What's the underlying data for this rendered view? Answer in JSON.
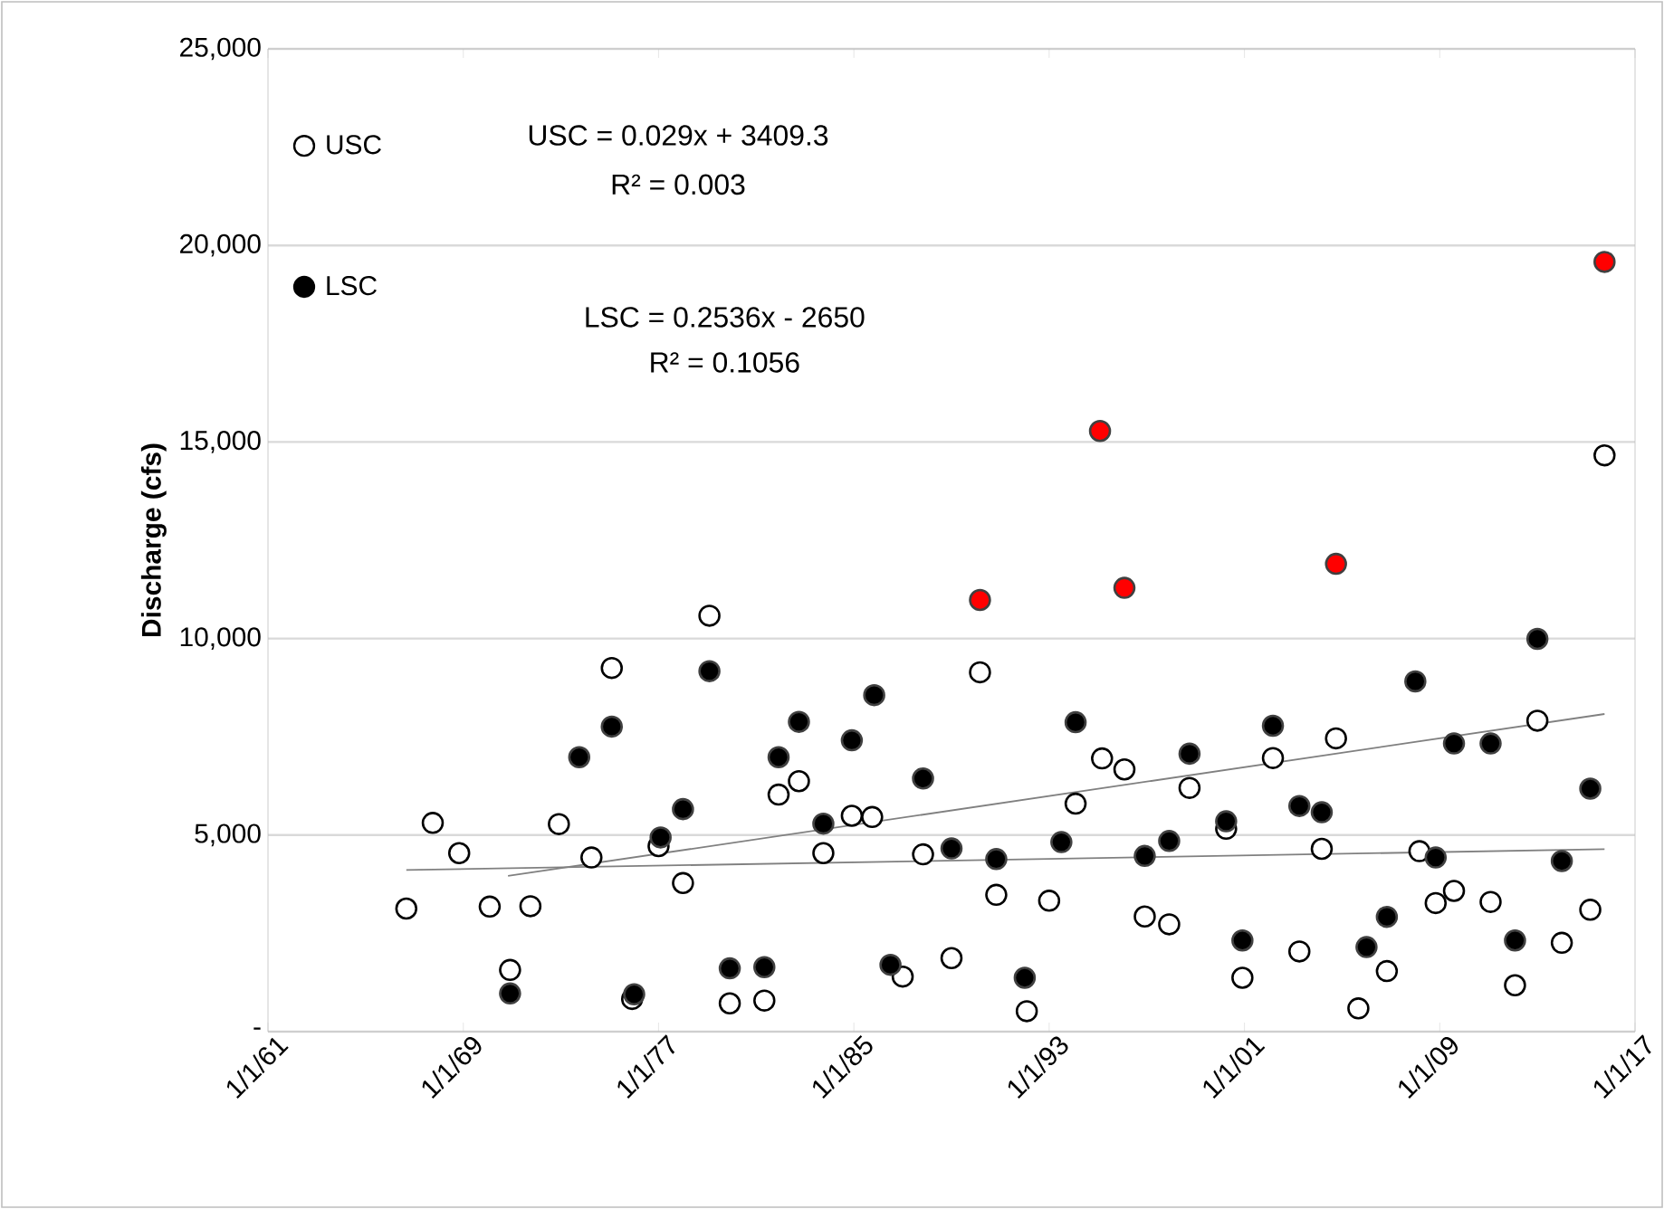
{
  "chart_data": {
    "type": "scatter",
    "ylabel": "Discharge (cfs)",
    "xlim": [
      "1961-01-01",
      "2017-01-01"
    ],
    "xticks": [
      {
        "value": "1961-01-01",
        "label": "1/1/61"
      },
      {
        "value": "1969-01-01",
        "label": "1/1/69"
      },
      {
        "value": "1977-01-01",
        "label": "1/1/77"
      },
      {
        "value": "1985-01-01",
        "label": "1/1/85"
      },
      {
        "value": "1993-01-01",
        "label": "1/1/93"
      },
      {
        "value": "2001-01-01",
        "label": "1/1/01"
      },
      {
        "value": "2009-01-01",
        "label": "1/1/09"
      },
      {
        "value": "2017-01-01",
        "label": "1/1/17"
      }
    ],
    "ylim": [
      0,
      25000
    ],
    "yticks": [
      {
        "value": 0,
        "label": "-"
      },
      {
        "value": 5000,
        "label": "5,000"
      },
      {
        "value": 10000,
        "label": "10,000"
      },
      {
        "value": 15000,
        "label": "15,000"
      },
      {
        "value": 20000,
        "label": "20,000"
      },
      {
        "value": 25000,
        "label": "25,000"
      }
    ],
    "grid": "y",
    "legend": "top left",
    "annotations": [
      "USC = 0.029x + 3409.3",
      "R² = 0.003",
      "LSC = 0.2536x - 2650",
      "R² = 0.1056"
    ],
    "series": [
      {
        "name": "USC",
        "color": "#000000",
        "x": [
          "1966-09",
          "1967-10",
          "1968-11",
          "1970-02",
          "1970-12",
          "1971-10",
          "1972-12",
          "1974-04",
          "1975-02",
          "1975-12",
          "1977-01",
          "1978-01",
          "1979-02",
          "1979-12",
          "1981-05",
          "1981-12",
          "1982-10",
          "1983-10",
          "1984-12",
          "1985-10",
          "1987-01",
          "1987-11",
          "1989-01",
          "1990-03",
          "1990-11",
          "1992-02",
          "1993-01",
          "1994-02",
          "1995-03",
          "1996-02",
          "1996-12",
          "1997-12",
          "1998-10",
          "2000-04",
          "2000-12",
          "2002-03",
          "2003-04",
          "2004-03",
          "2004-10",
          "2005-09",
          "2006-11",
          "2008-03",
          "2008-11",
          "2009-08",
          "2011-02",
          "2012-02",
          "2013-01",
          "2014-01",
          "2015-03",
          "2015-10"
        ],
        "values": [
          3130,
          5310,
          4540,
          3180,
          1570,
          3190,
          5280,
          4430,
          9250,
          830,
          4720,
          3780,
          10580,
          720,
          790,
          6030,
          6370,
          4540,
          5490,
          5460,
          1400,
          4510,
          1870,
          9140,
          3480,
          520,
          3330,
          5800,
          6950,
          6670,
          2930,
          2730,
          6200,
          5160,
          1370,
          6960,
          2040,
          4650,
          7460,
          590,
          1540,
          4590,
          3270,
          3580,
          3300,
          1180,
          7910,
          2260,
          3100,
          14660
        ]
      },
      {
        "name": "LSC",
        "color": "#000000",
        "x": [
          "1970-12",
          "1973-10",
          "1975-02",
          "1976-01",
          "1977-02",
          "1978-01",
          "1979-02",
          "1979-12",
          "1981-05",
          "1981-12",
          "1982-10",
          "1983-10",
          "1984-12",
          "1985-11",
          "1986-07",
          "1987-11",
          "1989-01",
          "1990-03",
          "1990-11",
          "1992-01",
          "1993-07",
          "1994-02",
          "1995-02",
          "1996-02",
          "1996-12",
          "1997-12",
          "1998-10",
          "2000-04",
          "2000-12",
          "2002-03",
          "2003-04",
          "2004-03",
          "2004-10",
          "2006-01",
          "2006-11",
          "2008-01",
          "2008-11",
          "2009-08",
          "2011-02",
          "2012-02",
          "2013-01",
          "2014-01",
          "2015-03",
          "2015-10"
        ],
        "values": [
          970,
          6980,
          7760,
          950,
          4940,
          5660,
          9170,
          1610,
          1640,
          6980,
          7880,
          5290,
          7410,
          8560,
          1700,
          6440,
          4660,
          10980,
          4390,
          1370,
          4820,
          7870,
          15280,
          11290,
          4470,
          4850,
          7070,
          5350,
          2320,
          7780,
          5740,
          5580,
          11900,
          2150,
          2920,
          8910,
          4430,
          7330,
          7330,
          2320,
          9990,
          4340,
          6180,
          19580
        ],
        "colors": [
          "#000000",
          "#000000",
          "#000000",
          "#000000",
          "#000000",
          "#000000",
          "#000000",
          "#000000",
          "#000000",
          "#000000",
          "#000000",
          "#000000",
          "#000000",
          "#000000",
          "#000000",
          "#000000",
          "#000000",
          "#ff0000",
          "#000000",
          "#000000",
          "#000000",
          "#000000",
          "#ff0000",
          "#ff0000",
          "#000000",
          "#000000",
          "#000000",
          "#000000",
          "#000000",
          "#000000",
          "#000000",
          "#000000",
          "#ff0000",
          "#000000",
          "#000000",
          "#000000",
          "#000000",
          "#000000",
          "#000000",
          "#000000",
          "#000000",
          "#000000",
          "#000000",
          "#ff0000"
        ]
      },
      {
        "type": "line",
        "color": "#808080",
        "x": [
          "1966-09",
          "2015-10"
        ],
        "values": [
          4110,
          4640
        ]
      },
      {
        "type": "line",
        "color": "#808080",
        "x": [
          "1970-11",
          "2015-10"
        ],
        "values": [
          3960,
          8080
        ]
      }
    ]
  }
}
